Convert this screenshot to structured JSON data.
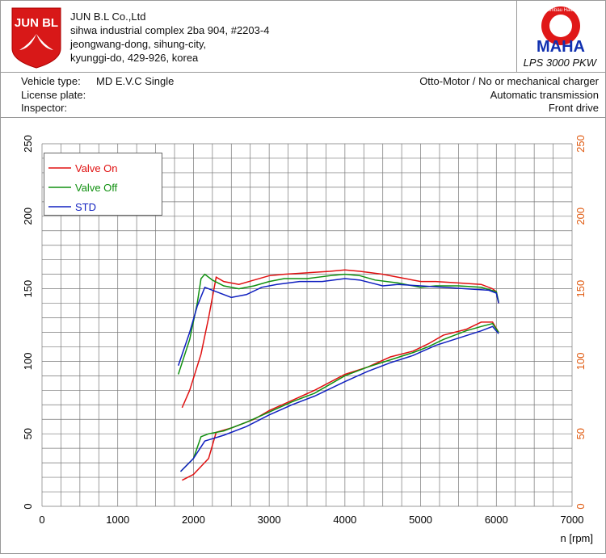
{
  "header": {
    "logo_text": "JUN BL",
    "company": [
      "JUN B.L Co.,Ltd",
      "sihwa industrial complex 2ba 904, #2203-4",
      "jeongwang-dong, sihung-city,",
      "kyunggi-do, 429-926, korea"
    ],
    "maha_ring": "Maschinenbau Haldenwang",
    "maha": "MAHA",
    "model": "LPS 3000 PKW"
  },
  "vehicle": {
    "left": [
      "Vehicle type:",
      "License plate:",
      "Inspector:"
    ],
    "type_value": "MD E.V.C Single",
    "right": [
      "Otto-Motor / No or mechanical charger",
      "Automatic transmission",
      "Front drive"
    ]
  },
  "chart_data": {
    "type": "line",
    "xlabel": "n [rpm]",
    "xlim": [
      0,
      7000
    ],
    "ylim": [
      0,
      250
    ],
    "y2lim": [
      0,
      250
    ],
    "xticks": [
      0,
      1000,
      2000,
      3000,
      4000,
      5000,
      6000,
      7000
    ],
    "yticks": [
      0,
      50,
      100,
      150,
      200,
      250
    ],
    "y2ticks": [
      0,
      50,
      100,
      150,
      200,
      250
    ],
    "xgrid": [
      0,
      250,
      500,
      750,
      1000,
      1250,
      1500,
      1750,
      2000,
      2250,
      2500,
      2750,
      3000,
      3250,
      3500,
      3750,
      4000,
      4250,
      4500,
      4750,
      5000,
      5250,
      5500,
      5750,
      6000,
      6250,
      6500,
      6750,
      7000
    ],
    "ygrid": [
      0,
      10,
      20,
      30,
      40,
      50,
      60,
      70,
      80,
      90,
      100,
      110,
      120,
      130,
      140,
      150,
      160,
      170,
      180,
      190,
      200,
      210,
      220,
      230,
      240,
      250
    ],
    "grid": true,
    "y2color": "#e05a10",
    "legend": "upper left",
    "series": [
      {
        "name": "Valve On",
        "color": "#e01010",
        "x": [
          1850,
          1950,
          2100,
          2200,
          2300,
          2400,
          2600,
          2800,
          3000,
          3200,
          3500,
          3800,
          4000,
          4200,
          4500,
          4700,
          5000,
          5200,
          5500,
          5800,
          5950,
          6000,
          6030
        ],
        "values": [
          68,
          80,
          105,
          130,
          158,
          155,
          153,
          156,
          159,
          160,
          161,
          162,
          163,
          162,
          160,
          158,
          155,
          155,
          154,
          153,
          150,
          148,
          140
        ],
        "x_lower": [
          1850,
          2000,
          2200,
          2300,
          2500,
          2800,
          3000,
          3300,
          3600,
          4000,
          4300,
          4600,
          4900,
          5100,
          5300,
          5600,
          5800,
          5950,
          6030
        ],
        "values_lower": [
          18,
          22,
          33,
          51,
          54,
          60,
          66,
          73,
          80,
          91,
          96,
          103,
          107,
          112,
          118,
          122,
          127,
          127,
          120
        ]
      },
      {
        "name": "Valve Off",
        "color": "#109010",
        "x": [
          1800,
          1950,
          2050,
          2100,
          2150,
          2250,
          2400,
          2600,
          2800,
          3000,
          3200,
          3500,
          3800,
          4000,
          4200,
          4400,
          4700,
          5000,
          5200,
          5500,
          5800,
          6000,
          6030
        ],
        "values": [
          91,
          115,
          140,
          157,
          160,
          156,
          152,
          150,
          152,
          155,
          157,
          157,
          159,
          160,
          159,
          156,
          154,
          151,
          152,
          152,
          151,
          148,
          141
        ],
        "x_lower": [
          1830,
          2000,
          2100,
          2200,
          2400,
          2700,
          3000,
          3300,
          3600,
          4000,
          4300,
          4600,
          4900,
          5100,
          5300,
          5600,
          5800,
          5950,
          6030
        ],
        "values_lower": [
          24,
          33,
          48,
          50,
          52,
          58,
          65,
          72,
          78,
          90,
          96,
          101,
          106,
          110,
          115,
          121,
          124,
          126,
          120
        ]
      },
      {
        "name": "STD",
        "color": "#1020c0",
        "x": [
          1800,
          1950,
          2050,
          2150,
          2300,
          2500,
          2700,
          2900,
          3100,
          3400,
          3700,
          4000,
          4200,
          4500,
          4700,
          5000,
          5300,
          5600,
          5900,
          6000,
          6030
        ],
        "values": [
          97,
          120,
          138,
          151,
          148,
          144,
          146,
          151,
          153,
          155,
          155,
          157,
          156,
          152,
          153,
          152,
          151,
          150,
          149,
          147,
          140
        ],
        "x_lower": [
          1830,
          2000,
          2150,
          2400,
          2700,
          3000,
          3300,
          3600,
          4000,
          4300,
          4600,
          4900,
          5200,
          5500,
          5800,
          5950,
          6030
        ],
        "values_lower": [
          24,
          33,
          45,
          49,
          55,
          63,
          70,
          76,
          86,
          93,
          99,
          104,
          111,
          116,
          121,
          124,
          119
        ]
      }
    ]
  }
}
